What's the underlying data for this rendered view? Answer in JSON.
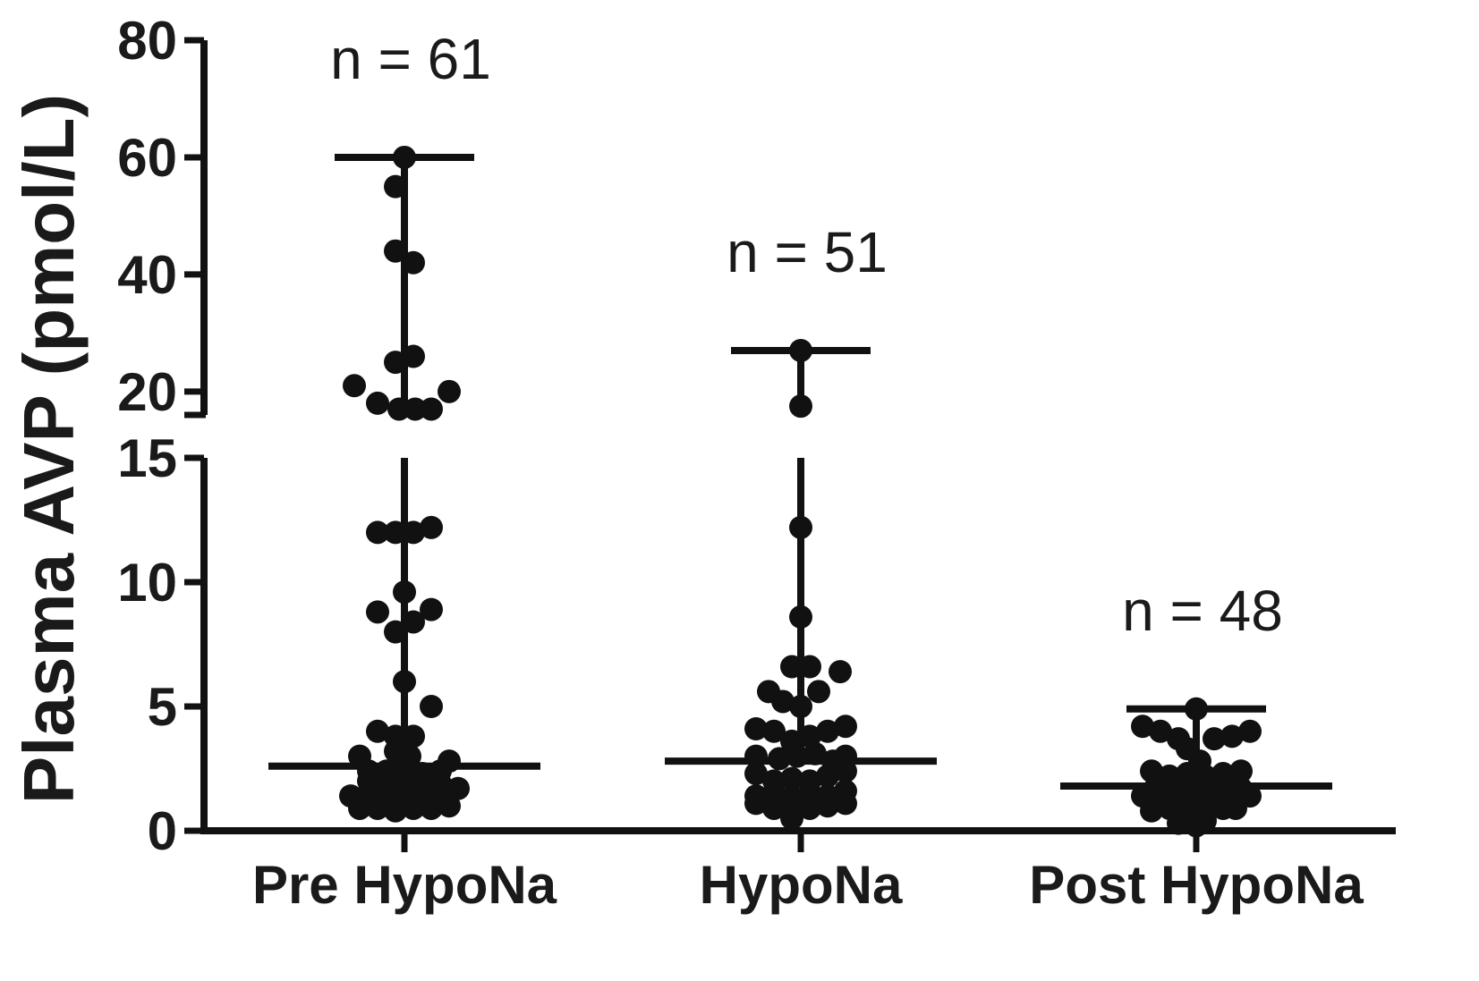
{
  "chart_data": {
    "type": "scatter",
    "ylabel": "Plasma AVP (pmol/L)",
    "y_axis": {
      "scale": "broken",
      "lower_range": [
        0,
        15
      ],
      "upper_range": [
        16,
        80
      ],
      "lower_ticks": [
        "0",
        "5",
        "10",
        "15"
      ],
      "upper_ticks": [
        "20",
        "40",
        "60",
        "80"
      ]
    },
    "categories": [
      "Pre HypoNa",
      "HypoNa",
      "Post HypoNa"
    ],
    "groups": [
      {
        "category": "Pre HypoNa",
        "n_label": "n = 61",
        "median": 2.6,
        "max": 60,
        "points": [
          {
            "x": 0.0,
            "y": 60
          },
          {
            "x": -0.05,
            "y": 55
          },
          {
            "x": -0.05,
            "y": 44
          },
          {
            "x": 0.05,
            "y": 42
          },
          {
            "x": -0.05,
            "y": 25
          },
          {
            "x": 0.05,
            "y": 26
          },
          {
            "x": -0.28,
            "y": 21
          },
          {
            "x": 0.25,
            "y": 20
          },
          {
            "x": -0.15,
            "y": 18
          },
          {
            "x": -0.03,
            "y": 17
          },
          {
            "x": 0.06,
            "y": 17
          },
          {
            "x": 0.15,
            "y": 17
          },
          {
            "x": -0.15,
            "y": 12.0
          },
          {
            "x": -0.05,
            "y": 12.0
          },
          {
            "x": 0.05,
            "y": 12.0
          },
          {
            "x": 0.15,
            "y": 12.2
          },
          {
            "x": 0.0,
            "y": 9.6
          },
          {
            "x": -0.15,
            "y": 8.8
          },
          {
            "x": 0.05,
            "y": 8.4
          },
          {
            "x": 0.15,
            "y": 8.9
          },
          {
            "x": -0.05,
            "y": 8.0
          },
          {
            "x": 0.0,
            "y": 6.0
          },
          {
            "x": 0.15,
            "y": 5.0
          },
          {
            "x": -0.15,
            "y": 4.0
          },
          {
            "x": -0.05,
            "y": 3.8
          },
          {
            "x": 0.05,
            "y": 3.8
          },
          {
            "x": -0.25,
            "y": 3.0
          },
          {
            "x": -0.05,
            "y": 3.2
          },
          {
            "x": 0.03,
            "y": 3.0
          },
          {
            "x": 0.25,
            "y": 2.8
          },
          {
            "x": -0.2,
            "y": 2.4
          },
          {
            "x": -0.1,
            "y": 2.4
          },
          {
            "x": 0.0,
            "y": 2.5
          },
          {
            "x": 0.1,
            "y": 2.3
          },
          {
            "x": 0.2,
            "y": 2.4
          },
          {
            "x": -0.2,
            "y": 2.0
          },
          {
            "x": -0.12,
            "y": 1.9
          },
          {
            "x": -0.04,
            "y": 2.0
          },
          {
            "x": 0.04,
            "y": 1.9
          },
          {
            "x": 0.12,
            "y": 2.0
          },
          {
            "x": 0.2,
            "y": 1.9
          },
          {
            "x": -0.3,
            "y": 1.4
          },
          {
            "x": -0.2,
            "y": 1.5
          },
          {
            "x": -0.1,
            "y": 1.4
          },
          {
            "x": 0.0,
            "y": 1.5
          },
          {
            "x": 0.1,
            "y": 1.4
          },
          {
            "x": 0.2,
            "y": 1.5
          },
          {
            "x": 0.3,
            "y": 1.7
          },
          {
            "x": -0.25,
            "y": 0.9
          },
          {
            "x": -0.15,
            "y": 0.9
          },
          {
            "x": -0.05,
            "y": 0.8
          },
          {
            "x": 0.05,
            "y": 0.9
          },
          {
            "x": 0.15,
            "y": 0.9
          },
          {
            "x": 0.25,
            "y": 1.0
          }
        ]
      },
      {
        "category": "HypoNa",
        "n_label": "n = 51",
        "median": 2.8,
        "max": 27,
        "points": [
          {
            "x": 0.0,
            "y": 27
          },
          {
            "x": 0.0,
            "y": 17.5
          },
          {
            "x": 0.0,
            "y": 12.2
          },
          {
            "x": 0.0,
            "y": 8.6
          },
          {
            "x": -0.05,
            "y": 6.6
          },
          {
            "x": 0.05,
            "y": 6.6
          },
          {
            "x": 0.22,
            "y": 6.4
          },
          {
            "x": -0.18,
            "y": 5.6
          },
          {
            "x": -0.1,
            "y": 5.2
          },
          {
            "x": 0.1,
            "y": 5.6
          },
          {
            "x": 0.0,
            "y": 5.0
          },
          {
            "x": -0.25,
            "y": 4.1
          },
          {
            "x": -0.15,
            "y": 4.0
          },
          {
            "x": -0.05,
            "y": 3.6
          },
          {
            "x": 0.05,
            "y": 3.8
          },
          {
            "x": 0.15,
            "y": 4.0
          },
          {
            "x": 0.25,
            "y": 4.2
          },
          {
            "x": -0.25,
            "y": 3.0
          },
          {
            "x": -0.12,
            "y": 2.9
          },
          {
            "x": -0.02,
            "y": 3.0
          },
          {
            "x": 0.08,
            "y": 3.1
          },
          {
            "x": 0.18,
            "y": 2.8
          },
          {
            "x": 0.25,
            "y": 3.0
          },
          {
            "x": -0.25,
            "y": 2.3
          },
          {
            "x": -0.15,
            "y": 2.0
          },
          {
            "x": -0.05,
            "y": 2.1
          },
          {
            "x": 0.05,
            "y": 2.0
          },
          {
            "x": 0.15,
            "y": 2.2
          },
          {
            "x": 0.25,
            "y": 2.4
          },
          {
            "x": -0.25,
            "y": 1.4
          },
          {
            "x": -0.15,
            "y": 1.5
          },
          {
            "x": -0.05,
            "y": 1.4
          },
          {
            "x": 0.05,
            "y": 1.5
          },
          {
            "x": 0.15,
            "y": 1.4
          },
          {
            "x": 0.25,
            "y": 1.6
          },
          {
            "x": -0.25,
            "y": 1.1
          },
          {
            "x": -0.15,
            "y": 0.9
          },
          {
            "x": -0.05,
            "y": 1.0
          },
          {
            "x": 0.05,
            "y": 0.9
          },
          {
            "x": 0.15,
            "y": 1.0
          },
          {
            "x": 0.25,
            "y": 1.1
          },
          {
            "x": -0.05,
            "y": 0.5
          }
        ]
      },
      {
        "category": "Post HypoNa",
        "n_label": "n = 48",
        "median": 1.8,
        "max": 4.9,
        "points": [
          {
            "x": 0.0,
            "y": 4.9
          },
          {
            "x": -0.3,
            "y": 4.2
          },
          {
            "x": -0.2,
            "y": 4.0
          },
          {
            "x": -0.1,
            "y": 3.7
          },
          {
            "x": 0.1,
            "y": 3.7
          },
          {
            "x": 0.2,
            "y": 3.8
          },
          {
            "x": 0.3,
            "y": 4.0
          },
          {
            "x": -0.05,
            "y": 3.3
          },
          {
            "x": 0.02,
            "y": 2.8
          },
          {
            "x": -0.25,
            "y": 2.4
          },
          {
            "x": -0.15,
            "y": 2.2
          },
          {
            "x": -0.05,
            "y": 2.3
          },
          {
            "x": 0.05,
            "y": 2.2
          },
          {
            "x": 0.15,
            "y": 2.3
          },
          {
            "x": 0.25,
            "y": 2.4
          },
          {
            "x": -0.22,
            "y": 1.9
          },
          {
            "x": -0.12,
            "y": 1.8
          },
          {
            "x": -0.02,
            "y": 1.9
          },
          {
            "x": 0.08,
            "y": 1.8
          },
          {
            "x": 0.18,
            "y": 1.9
          },
          {
            "x": 0.25,
            "y": 1.7
          },
          {
            "x": -0.3,
            "y": 1.4
          },
          {
            "x": -0.2,
            "y": 1.3
          },
          {
            "x": -0.1,
            "y": 1.4
          },
          {
            "x": 0.0,
            "y": 1.3
          },
          {
            "x": 0.1,
            "y": 1.4
          },
          {
            "x": 0.2,
            "y": 1.3
          },
          {
            "x": 0.3,
            "y": 1.4
          },
          {
            "x": -0.25,
            "y": 0.8
          },
          {
            "x": -0.15,
            "y": 0.9
          },
          {
            "x": -0.05,
            "y": 0.8
          },
          {
            "x": 0.05,
            "y": 0.8
          },
          {
            "x": 0.15,
            "y": 0.9
          },
          {
            "x": 0.22,
            "y": 0.9
          },
          {
            "x": -0.1,
            "y": 0.3
          },
          {
            "x": 0.0,
            "y": 0.2
          },
          {
            "x": 0.05,
            "y": 0.4
          }
        ]
      }
    ],
    "colors": {
      "ink": "#111111"
    }
  }
}
